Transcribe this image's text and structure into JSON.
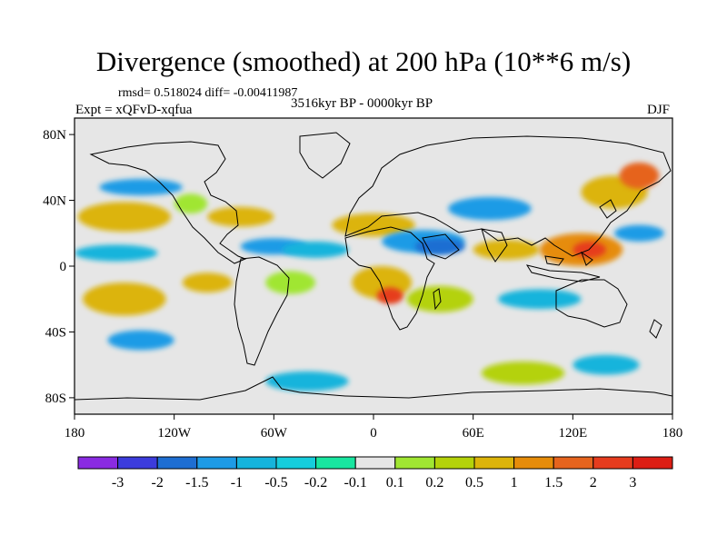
{
  "title": "Divergence (smoothed) at 200 hPa (10**6 m/s)",
  "stats_line": "rmsd= 0.518024 diff= -0.00411987",
  "left_label": "Expt = xQFvD-xqfua",
  "center_label": "3516kyr BP - 0000kyr BP",
  "right_label": "DJF",
  "map": {
    "projection": "cylindrical-equidistant",
    "lon_range": [
      -180,
      180
    ],
    "lat_range": [
      -90,
      90
    ],
    "lat_ticks": [
      {
        "value": 80,
        "label": "80N"
      },
      {
        "value": 40,
        "label": "40N"
      },
      {
        "value": 0,
        "label": "0"
      },
      {
        "value": -40,
        "label": "40S"
      },
      {
        "value": -80,
        "label": "80S"
      }
    ],
    "lon_ticks": [
      {
        "value": -180,
        "label": "180"
      },
      {
        "value": -120,
        "label": "120W"
      },
      {
        "value": -60,
        "label": "60W"
      },
      {
        "value": 0,
        "label": "0"
      },
      {
        "value": 60,
        "label": "60E"
      },
      {
        "value": 120,
        "label": "120E"
      },
      {
        "value": 180,
        "label": "180"
      }
    ],
    "background_color": "#e6e6e6",
    "blobs": [
      {
        "lon": -150,
        "lat": 30,
        "rx": 28,
        "ry": 9,
        "level": 10
      },
      {
        "lon": -110,
        "lat": 38,
        "rx": 10,
        "ry": 6,
        "level": 8
      },
      {
        "lon": -140,
        "lat": 48,
        "rx": 25,
        "ry": 5,
        "level": 3
      },
      {
        "lon": -155,
        "lat": 8,
        "rx": 25,
        "ry": 5,
        "level": 4
      },
      {
        "lon": -150,
        "lat": -20,
        "rx": 25,
        "ry": 10,
        "level": 10
      },
      {
        "lon": -140,
        "lat": -45,
        "rx": 20,
        "ry": 6,
        "level": 3
      },
      {
        "lon": -100,
        "lat": -10,
        "rx": 15,
        "ry": 6,
        "level": 10
      },
      {
        "lon": -80,
        "lat": 30,
        "rx": 20,
        "ry": 6,
        "level": 10
      },
      {
        "lon": -60,
        "lat": 12,
        "rx": 20,
        "ry": 5,
        "level": 3
      },
      {
        "lon": -50,
        "lat": -10,
        "rx": 15,
        "ry": 7,
        "level": 8
      },
      {
        "lon": -35,
        "lat": 10,
        "rx": 20,
        "ry": 5,
        "level": 4
      },
      {
        "lon": 0,
        "lat": 25,
        "rx": 25,
        "ry": 7,
        "level": 10
      },
      {
        "lon": 30,
        "lat": 15,
        "rx": 25,
        "ry": 7,
        "level": 3
      },
      {
        "lon": 40,
        "lat": 12,
        "rx": 15,
        "ry": 5,
        "level": 2
      },
      {
        "lon": 5,
        "lat": -10,
        "rx": 18,
        "ry": 10,
        "level": 10
      },
      {
        "lon": 10,
        "lat": -18,
        "rx": 8,
        "ry": 5,
        "level": 13
      },
      {
        "lon": 40,
        "lat": -20,
        "rx": 20,
        "ry": 8,
        "level": 9
      },
      {
        "lon": 70,
        "lat": 35,
        "rx": 25,
        "ry": 7,
        "level": 3
      },
      {
        "lon": 80,
        "lat": 10,
        "rx": 20,
        "ry": 6,
        "level": 10
      },
      {
        "lon": 125,
        "lat": 10,
        "rx": 25,
        "ry": 10,
        "level": 11
      },
      {
        "lon": 130,
        "lat": 10,
        "rx": 10,
        "ry": 5,
        "level": 13
      },
      {
        "lon": 145,
        "lat": 45,
        "rx": 20,
        "ry": 10,
        "level": 10
      },
      {
        "lon": 160,
        "lat": 55,
        "rx": 12,
        "ry": 8,
        "level": 12
      },
      {
        "lon": 160,
        "lat": 20,
        "rx": 15,
        "ry": 5,
        "level": 3
      },
      {
        "lon": 100,
        "lat": -20,
        "rx": 25,
        "ry": 6,
        "level": 4
      },
      {
        "lon": -40,
        "lat": -70,
        "rx": 25,
        "ry": 6,
        "level": 4
      },
      {
        "lon": 90,
        "lat": -65,
        "rx": 25,
        "ry": 7,
        "level": 9
      },
      {
        "lon": 140,
        "lat": -60,
        "rx": 20,
        "ry": 6,
        "level": 4
      }
    ]
  },
  "colorbar": {
    "colors": [
      "#8a2be2",
      "#3c3cdc",
      "#1e6ed2",
      "#1e9be6",
      "#16b4dc",
      "#16cddc",
      "#18e6a0",
      "#e6e6e6",
      "#a0e632",
      "#b4d20a",
      "#dcb40a",
      "#e68c0a",
      "#e6641e",
      "#e63c1e",
      "#dc1e14"
    ],
    "labels": [
      "-3",
      "-2",
      "-1.5",
      "-1",
      "-0.5",
      "-0.2",
      "-0.1",
      "0.1",
      "0.2",
      "0.5",
      "1",
      "1.5",
      "2",
      "3"
    ]
  }
}
